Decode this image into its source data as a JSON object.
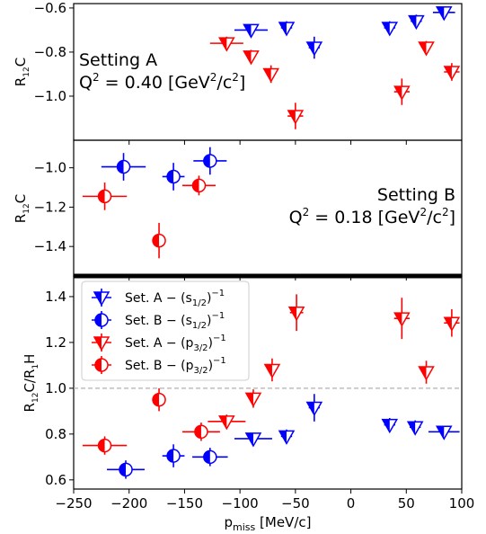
{
  "chart_data": [
    {
      "type": "scatter",
      "panel": "top",
      "ylabel": "R_{12C}",
      "ylim": [
        -1.2,
        -0.58
      ],
      "yticks": [
        -0.6,
        -0.8,
        -1.0
      ],
      "ytick_labels": [
        "−0.6",
        "−0.8",
        "−1.0"
      ],
      "annotation": {
        "line1": "Setting A",
        "line2": "Q² = 0.40 [GeV²/c²]"
      },
      "series": [
        {
          "style": "blue-triangle",
          "points": [
            {
              "x": -90,
              "y": -0.7,
              "xerr": 15,
              "yerr": 0.02
            },
            {
              "x": -58,
              "y": -0.69,
              "xerr": 5,
              "yerr": 0.03
            },
            {
              "x": -33,
              "y": -0.78,
              "xerr": 5,
              "yerr": 0.05
            },
            {
              "x": 35,
              "y": -0.69,
              "xerr": 5,
              "yerr": 0.03
            },
            {
              "x": 59,
              "y": -0.66,
              "xerr": 5,
              "yerr": 0.03
            },
            {
              "x": 84,
              "y": -0.62,
              "xerr": 10,
              "yerr": 0.02
            }
          ]
        },
        {
          "style": "red-triangle",
          "points": [
            {
              "x": -112,
              "y": -0.76,
              "xerr": 15,
              "yerr": 0.03
            },
            {
              "x": -90,
              "y": -0.82,
              "xerr": 3,
              "yerr": 0.03
            },
            {
              "x": -72,
              "y": -0.9,
              "xerr": 3,
              "yerr": 0.04
            },
            {
              "x": -50,
              "y": -1.09,
              "xerr": 7,
              "yerr": 0.06
            },
            {
              "x": 46,
              "y": -0.98,
              "xerr": 7,
              "yerr": 0.06
            },
            {
              "x": 68,
              "y": -0.78,
              "xerr": 3,
              "yerr": 0.03
            },
            {
              "x": 91,
              "y": -0.89,
              "xerr": 7,
              "yerr": 0.04
            }
          ]
        }
      ]
    },
    {
      "type": "scatter",
      "panel": "middle",
      "ylabel": "R_{12C}",
      "ylim": [
        -1.55,
        -0.86
      ],
      "yticks": [
        -1.0,
        -1.2,
        -1.4
      ],
      "ytick_labels": [
        "−1.0",
        "−1.2",
        "−1.4"
      ],
      "annotation": {
        "line1": "Setting B",
        "line2": "Q² = 0.18 [GeV²/c²]"
      },
      "series": [
        {
          "style": "blue-circle",
          "points": [
            {
              "x": -205,
              "y": -0.995,
              "xerr": 20,
              "yerr": 0.07
            },
            {
              "x": -160,
              "y": -1.045,
              "xerr": 10,
              "yerr": 0.07
            },
            {
              "x": -127,
              "y": -0.965,
              "xerr": 15,
              "yerr": 0.07
            }
          ]
        },
        {
          "style": "red-circle",
          "points": [
            {
              "x": -222,
              "y": -1.145,
              "xerr": 20,
              "yerr": 0.07
            },
            {
              "x": -173,
              "y": -1.37,
              "xerr": 5,
              "yerr": 0.09
            },
            {
              "x": -137,
              "y": -1.09,
              "xerr": 15,
              "yerr": 0.05
            }
          ]
        }
      ]
    },
    {
      "type": "scatter",
      "panel": "bottom",
      "xlabel": "p_miss [MeV/c]",
      "ylabel": "R_{12C}/R_{1H}",
      "xlim": [
        -250,
        100
      ],
      "ylim": [
        0.56,
        1.49
      ],
      "xticks": [
        -250,
        -200,
        -150,
        -100,
        -50,
        0,
        50,
        100
      ],
      "xtick_labels": [
        "−250",
        "−200",
        "−150",
        "−100",
        "−50",
        "0",
        "50",
        "100"
      ],
      "yticks": [
        0.6,
        0.8,
        1.0,
        1.2,
        1.4
      ],
      "ytick_labels": [
        "0.6",
        "0.8",
        "1.0",
        "1.2",
        "1.4"
      ],
      "reference_line": 1.0,
      "legend_position": "upper-left",
      "legend": [
        {
          "style": "blue-triangle",
          "label": "Set. A − (s1/2)−1",
          "main": "Set. A − (s",
          "sub": "1/2",
          "close": ")",
          "sup": "−1"
        },
        {
          "style": "blue-circle",
          "label": "Set. B − (s1/2)−1",
          "main": "Set. B − (s",
          "sub": "1/2",
          "close": ")",
          "sup": "−1"
        },
        {
          "style": "red-triangle",
          "label": "Set. A − (p3/2)−1",
          "main": "Set. A − (p",
          "sub": "3/2",
          "close": ")",
          "sup": "−1"
        },
        {
          "style": "red-circle",
          "label": "Set. B − (p3/2)−1",
          "main": "Set. B − (p",
          "sub": "3/2",
          "close": ")",
          "sup": "−1"
        }
      ],
      "series": [
        {
          "style": "blue-triangle",
          "points": [
            {
              "x": -88,
              "y": 0.78,
              "xerr": 17,
              "yerr": 0.02
            },
            {
              "x": -58,
              "y": 0.79,
              "xerr": 5,
              "yerr": 0.03
            },
            {
              "x": -33,
              "y": 0.915,
              "xerr": 5,
              "yerr": 0.06
            },
            {
              "x": 35,
              "y": 0.84,
              "xerr": 5,
              "yerr": 0.03
            },
            {
              "x": 58,
              "y": 0.83,
              "xerr": 5,
              "yerr": 0.03
            },
            {
              "x": 84,
              "y": 0.81,
              "xerr": 14,
              "yerr": 0.02
            }
          ]
        },
        {
          "style": "blue-circle",
          "points": [
            {
              "x": -203,
              "y": 0.645,
              "xerr": 17,
              "yerr": 0.04
            },
            {
              "x": -160,
              "y": 0.705,
              "xerr": 10,
              "yerr": 0.05
            },
            {
              "x": -127,
              "y": 0.7,
              "xerr": 16,
              "yerr": 0.04
            }
          ]
        },
        {
          "style": "red-triangle",
          "points": [
            {
              "x": -112,
              "y": 0.855,
              "xerr": 17,
              "yerr": 0.03
            },
            {
              "x": -88,
              "y": 0.955,
              "xerr": 3,
              "yerr": 0.04
            },
            {
              "x": -71,
              "y": 1.08,
              "xerr": 3,
              "yerr": 0.05
            },
            {
              "x": -49,
              "y": 1.33,
              "xerr": 6,
              "yerr": 0.08
            },
            {
              "x": 46,
              "y": 1.305,
              "xerr": 7,
              "yerr": 0.09
            },
            {
              "x": 68,
              "y": 1.07,
              "xerr": 3,
              "yerr": 0.05
            },
            {
              "x": 91,
              "y": 1.285,
              "xerr": 7,
              "yerr": 0.06
            }
          ]
        },
        {
          "style": "red-circle",
          "points": [
            {
              "x": -222,
              "y": 0.75,
              "xerr": 20,
              "yerr": 0.04
            },
            {
              "x": -173,
              "y": 0.95,
              "xerr": 5,
              "yerr": 0.05
            },
            {
              "x": -135,
              "y": 0.81,
              "xerr": 17,
              "yerr": 0.04
            }
          ]
        }
      ]
    }
  ],
  "colors": {
    "blue": "#0000ff",
    "red": "#ff0000",
    "reference": "#b0b0b0"
  }
}
